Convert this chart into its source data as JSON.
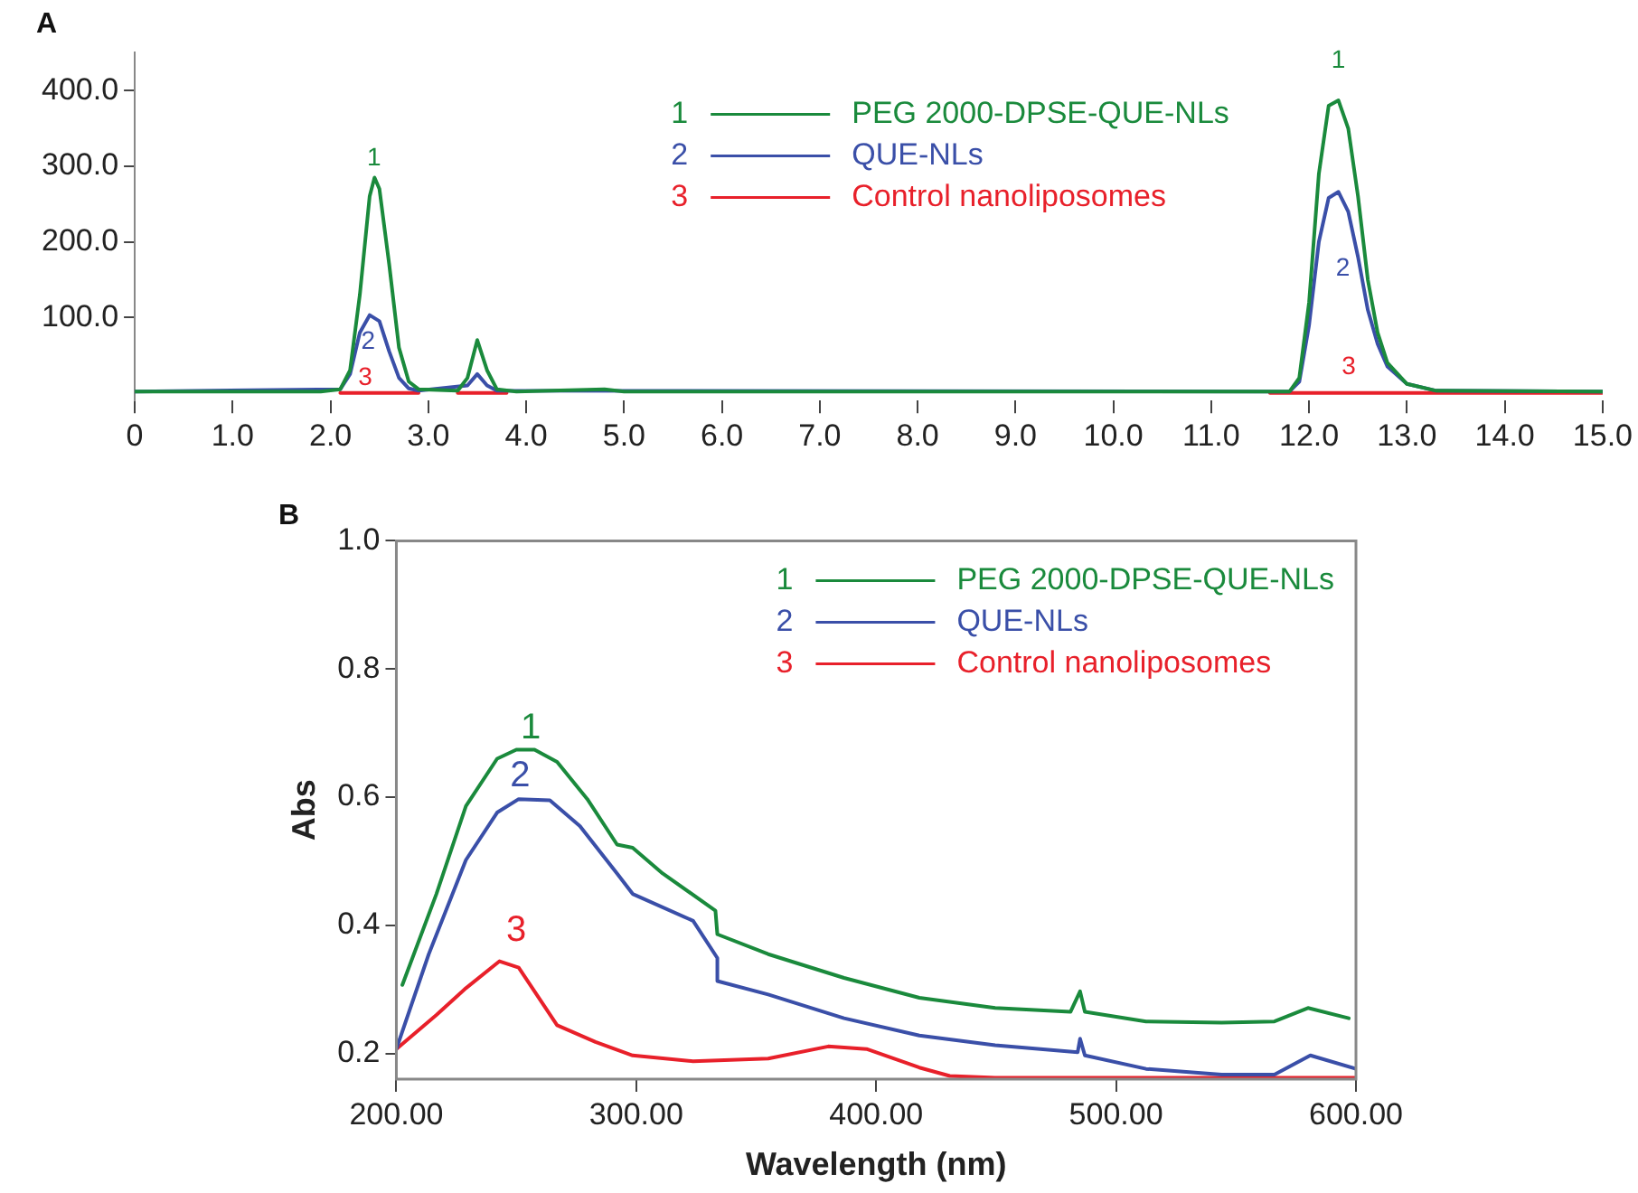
{
  "chart_data": [
    {
      "type": "line",
      "title": "A",
      "legend": "top",
      "marker": "none",
      "line_style": "solid",
      "xlim": [
        0,
        15
      ],
      "xticks": [
        0,
        {
          "value": 1,
          "label": "1.0"
        },
        {
          "value": 2,
          "label": "2.0"
        },
        {
          "value": 3,
          "label": "3.0"
        },
        {
          "value": 4,
          "label": "4.0"
        },
        {
          "value": 5,
          "label": "5.0"
        },
        {
          "value": 6,
          "label": "6.0"
        },
        {
          "value": 7,
          "label": "7.0"
        },
        {
          "value": 8,
          "label": "8.0"
        },
        {
          "value": 9,
          "label": "9.0"
        },
        {
          "value": 10,
          "label": "10.0"
        },
        {
          "value": 11,
          "label": "11.0"
        },
        {
          "value": 12,
          "label": "12.0"
        },
        {
          "value": 13,
          "label": "13.0"
        },
        {
          "value": 14,
          "label": "14.0"
        },
        {
          "value": 15,
          "label": "15.0"
        }
      ],
      "ylim": [
        -10,
        450
      ],
      "yticks": [
        {
          "value": 100,
          "label": "100.0"
        },
        {
          "value": 200,
          "label": "200.0"
        },
        {
          "value": 300,
          "label": "300.0"
        },
        {
          "value": 400,
          "label": "400.0"
        }
      ],
      "series": [
        {
          "name": "PEG 2000-DPSE-QUE-NLs",
          "color": "#1a8a3c",
          "x": [
            0,
            1.9,
            2.1,
            2.2,
            2.3,
            2.4,
            2.45,
            2.5,
            2.6,
            2.7,
            2.8,
            2.9,
            3.3,
            3.4,
            3.5,
            3.6,
            3.7,
            3.9,
            4.8,
            5,
            11.8,
            11.9,
            12,
            12.1,
            12.2,
            12.3,
            12.4,
            12.5,
            12.6,
            12.7,
            12.8,
            13,
            13.3,
            15
          ],
          "values": [
            2,
            2,
            5,
            30,
            130,
            260,
            285,
            270,
            170,
            60,
            15,
            5,
            3,
            20,
            70,
            30,
            5,
            2,
            5,
            2,
            2,
            20,
            120,
            290,
            380,
            387,
            350,
            260,
            150,
            80,
            40,
            12,
            3,
            2
          ]
        },
        {
          "name": "QUE-NLs",
          "color": "#3a4fa8",
          "x": [
            0,
            2.1,
            2.2,
            2.3,
            2.4,
            2.5,
            2.6,
            2.7,
            2.8,
            2.9,
            3.4,
            3.5,
            3.6,
            3.7,
            11.8,
            11.9,
            12,
            12.1,
            12.2,
            12.3,
            12.4,
            12.5,
            12.6,
            12.7,
            12.8,
            13,
            13.3,
            15
          ],
          "values": [
            2,
            5,
            25,
            80,
            103,
            95,
            55,
            20,
            6,
            3,
            10,
            25,
            10,
            3,
            2,
            15,
            90,
            200,
            258,
            266,
            240,
            180,
            110,
            65,
            35,
            12,
            3,
            2
          ]
        },
        {
          "name": "Control nanoliposomes",
          "color": "#e8202a",
          "x": [
            2.1,
            2.9,
            3,
            3.3,
            3.8,
            3.9,
            11.6,
            15
          ],
          "values": [
            0,
            0,
            null,
            0,
            0,
            null,
            0,
            0
          ]
        }
      ],
      "annotations": [
        "1",
        "2",
        "3",
        "1",
        "2",
        "3",
        "1",
        "2",
        "3"
      ]
    },
    {
      "type": "line",
      "title": "B",
      "xlabel": "Wavelength (nm)",
      "ylabel": "Abs",
      "legend": "top right",
      "marker": "none",
      "line_style": "solid",
      "xlim": [
        200,
        600
      ],
      "xticks": [
        {
          "value": 200,
          "label": "200.00"
        },
        {
          "value": 300,
          "label": "300.00"
        },
        {
          "value": 400,
          "label": "400.00"
        },
        {
          "value": 500,
          "label": "500.00"
        },
        {
          "value": 600,
          "label": "600.00"
        }
      ],
      "ylim": [
        0.16,
        1.0
      ],
      "yticks": [
        0.2,
        0.4,
        0.6,
        0.8,
        {
          "value": 1.0,
          "label": "1.0"
        }
      ],
      "series": [
        {
          "name": "PEG 2000-DPSE-QUE-NLs",
          "color": "#1a8a3c",
          "x": [
            202.5,
            216.7,
            229,
            242,
            250,
            257.6,
            267,
            279.6,
            292,
            298.5,
            311,
            333,
            333.8,
            355,
            386.6,
            418,
            449.6,
            481,
            485,
            487,
            512.5,
            544,
            566,
            580,
            597
          ],
          "values": [
            0.307,
            0.449,
            0.586,
            0.66,
            0.674,
            0.674,
            0.655,
            0.597,
            0.526,
            0.521,
            0.481,
            0.423,
            0.386,
            0.355,
            0.318,
            0.287,
            0.271,
            0.265,
            0.297,
            0.265,
            0.25,
            0.248,
            0.25,
            0.271,
            0.255
          ]
        },
        {
          "name": "QUE-NLs",
          "color": "#3a4fa8",
          "x": [
            200,
            213.5,
            229,
            242,
            251,
            264,
            276.5,
            292,
            298.5,
            323.7,
            333.8,
            333.8,
            355,
            386.6,
            418,
            449.6,
            484,
            485,
            487,
            512.5,
            544,
            566,
            581,
            600
          ],
          "values": [
            0.207,
            0.355,
            0.502,
            0.576,
            0.597,
            0.595,
            0.555,
            0.481,
            0.449,
            0.407,
            0.349,
            0.313,
            0.292,
            0.255,
            0.228,
            0.213,
            0.202,
            0.223,
            0.197,
            0.176,
            0.167,
            0.167,
            0.197,
            0.176
          ]
        },
        {
          "name": "Control nanoliposomes",
          "color": "#e8202a",
          "x": [
            200,
            216.7,
            229,
            243,
            251,
            267,
            283,
            298.5,
            323.7,
            355,
            380,
            396,
            418,
            430.7,
            449.6,
            600
          ],
          "values": [
            0.207,
            0.26,
            0.302,
            0.344,
            0.334,
            0.244,
            0.218,
            0.197,
            0.188,
            0.192,
            0.211,
            0.207,
            0.178,
            0.165,
            0.162,
            0.162
          ]
        }
      ],
      "annotations": [
        "1",
        "2",
        "3",
        "1",
        "2",
        "3"
      ]
    }
  ]
}
